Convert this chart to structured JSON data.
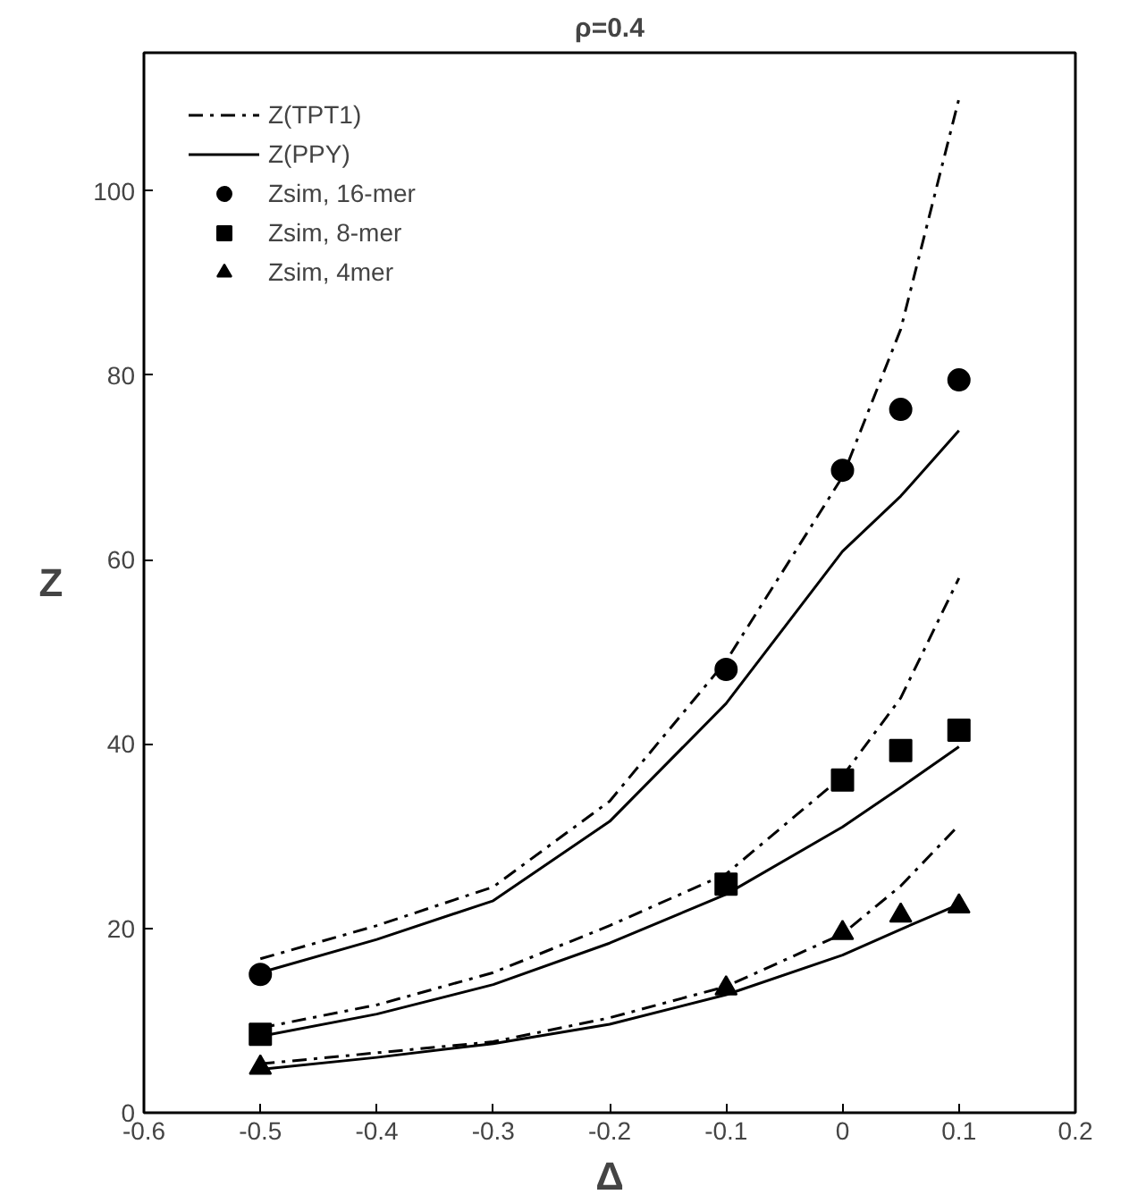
{
  "chart_data": {
    "type": "line",
    "title": "ρ=0.4",
    "xlabel": "Δ",
    "ylabel": "Z",
    "xlim": [
      -0.6,
      0.2
    ],
    "xticks": [
      -0.6,
      -0.5,
      -0.4,
      -0.3,
      -0.2,
      -0.1,
      0,
      0.1,
      0.2
    ],
    "ylim": [
      0,
      115
    ],
    "yticks": [
      0,
      20,
      40,
      60,
      80,
      100
    ],
    "grid": false,
    "legend": "top left",
    "series": [
      {
        "name": "Z(TPT1)",
        "line_style": "dashdot",
        "marker": "none",
        "color": "#000000",
        "x": [
          -0.5,
          -0.4,
          -0.3,
          -0.2,
          -0.1,
          0,
          0.05,
          0.1
        ],
        "values": [
          16.7,
          20.3,
          24.5,
          33.8,
          49,
          69,
          85,
          110
        ]
      },
      {
        "name": "Z(PPY)",
        "line_style": "solid",
        "marker": "none",
        "color": "#000000",
        "x": [
          -0.5,
          -0.4,
          -0.3,
          -0.2,
          -0.1,
          0,
          0.05,
          0.1
        ],
        "values": [
          15.2,
          18.8,
          23,
          31.6,
          44.4,
          60.9,
          66.9,
          74
        ]
      },
      {
        "line_style": "dashdot",
        "marker": "none",
        "color": "#000000",
        "x": [
          -0.5,
          -0.4,
          -0.3,
          -0.2,
          -0.1,
          0,
          0.05,
          0.1
        ],
        "values": [
          9.2,
          11.7,
          15.2,
          20.3,
          25.9,
          36.5,
          45,
          58
        ]
      },
      {
        "line_style": "solid",
        "marker": "none",
        "color": "#000000",
        "x": [
          -0.5,
          -0.4,
          -0.3,
          -0.2,
          -0.1,
          0,
          0.05,
          0.1
        ],
        "values": [
          8.3,
          10.7,
          13.9,
          18.4,
          23.7,
          31,
          35.3,
          39.7
        ]
      },
      {
        "line_style": "dashdot",
        "marker": "none",
        "color": "#000000",
        "x": [
          -0.5,
          -0.3,
          -0.2,
          -0.1,
          0,
          0.05,
          0.1
        ],
        "values": [
          5.3,
          7.7,
          10.3,
          13.7,
          19.4,
          24.6,
          31.2
        ]
      },
      {
        "line_style": "solid",
        "marker": "none",
        "color": "#000000",
        "x": [
          -0.5,
          -0.4,
          -0.3,
          -0.2,
          -0.1,
          0,
          0.05,
          0.1
        ],
        "values": [
          4.7,
          6,
          7.5,
          9.6,
          12.8,
          17.1,
          19.9,
          22.6
        ]
      },
      {
        "name": "Zsim, 16-mer",
        "type": "scatter",
        "marker": "circle",
        "color": "#000000",
        "x": [
          -0.5,
          -0.1,
          0,
          0.05,
          0.1
        ],
        "values": [
          15,
          48.1,
          69.7,
          76.3,
          79.5
        ]
      },
      {
        "name": "Zsim, 8-mer",
        "type": "scatter",
        "marker": "square",
        "color": "#000000",
        "x": [
          -0.5,
          -0.1,
          0,
          0.05,
          0.1
        ],
        "values": [
          8.5,
          24.8,
          36.1,
          39.3,
          41.5
        ]
      },
      {
        "name": "Zsim, 4mer",
        "type": "scatter",
        "marker": "triangle",
        "color": "#000000",
        "x": [
          -0.5,
          -0.1,
          0,
          0.05,
          0.1
        ],
        "values": [
          4.9,
          13.5,
          19.5,
          21.4,
          22.4
        ]
      }
    ]
  }
}
